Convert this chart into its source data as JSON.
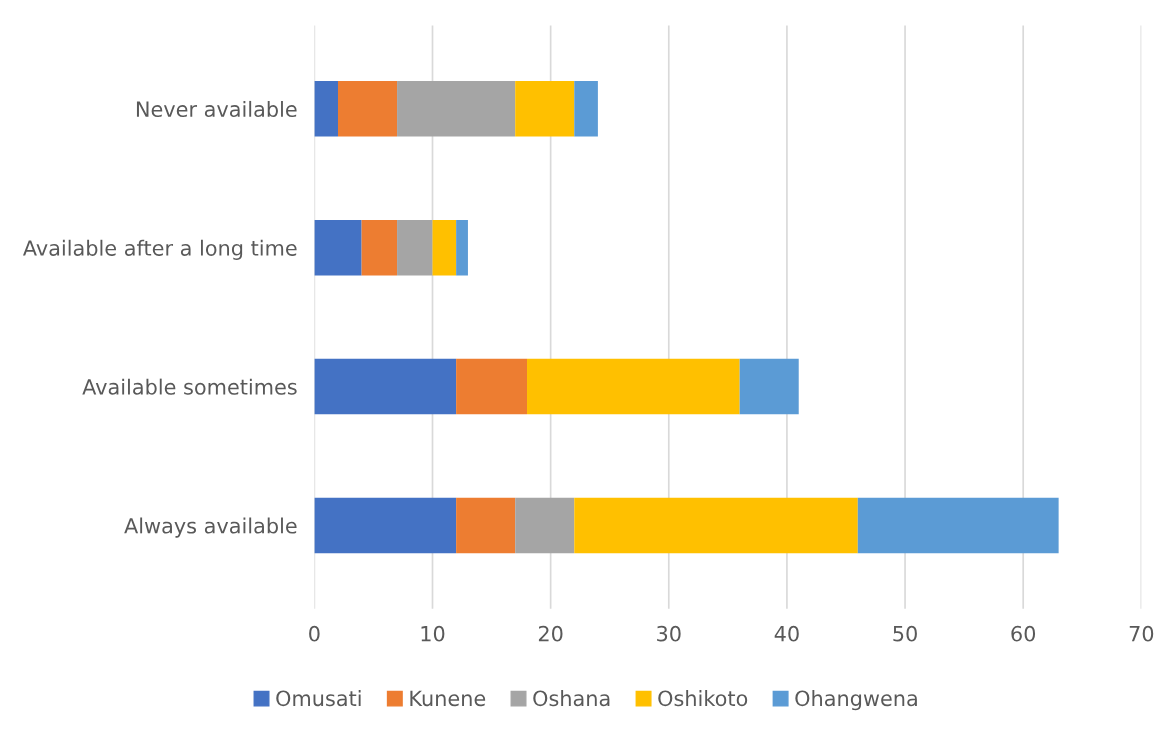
{
  "chart_data": {
    "type": "bar",
    "orientation": "horizontal",
    "stacked": true,
    "categories": [
      "Never available",
      "Available after a long time",
      "Available sometimes",
      "Always available"
    ],
    "series": [
      {
        "name": "Omusati",
        "color": "#4472c4",
        "values": [
          2,
          4,
          12,
          12
        ]
      },
      {
        "name": "Kunene",
        "color": "#ed7d31",
        "values": [
          5,
          3,
          6,
          5
        ]
      },
      {
        "name": "Oshana",
        "color": "#a5a5a5",
        "values": [
          10,
          3,
          0,
          5
        ]
      },
      {
        "name": "Oshikoto",
        "color": "#ffc000",
        "values": [
          5,
          2,
          18,
          24
        ]
      },
      {
        "name": "Ohangwena",
        "color": "#5b9bd5",
        "values": [
          2,
          1,
          5,
          17
        ]
      }
    ],
    "xlim": [
      0,
      70
    ],
    "xticks": [
      0,
      10,
      20,
      30,
      40,
      50,
      60,
      70
    ],
    "grid": "x",
    "legend": "bottom"
  }
}
